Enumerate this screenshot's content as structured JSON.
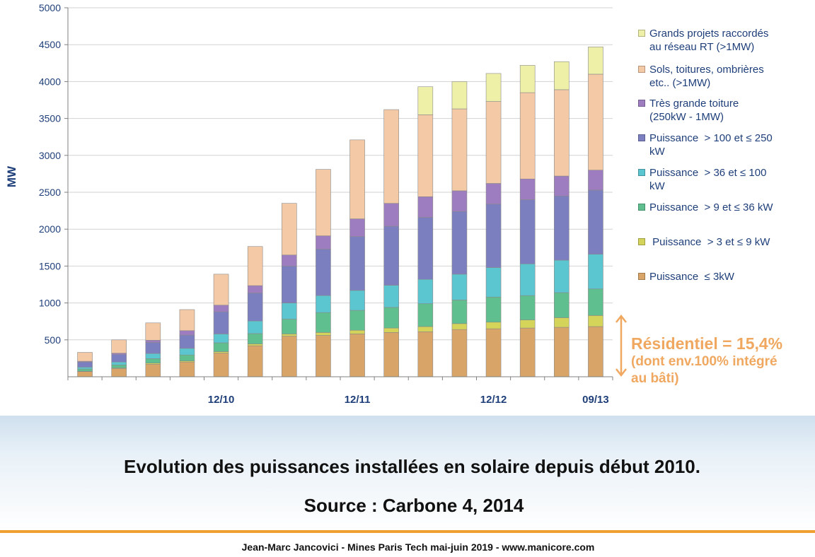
{
  "chart_data": {
    "type": "bar",
    "stacked": true,
    "ylabel": "MW",
    "ylim": [
      0,
      5000
    ],
    "yticks": [
      500,
      1000,
      1500,
      2000,
      2500,
      3000,
      3500,
      4000,
      4500,
      5000
    ],
    "grid": true,
    "legend_position": "right",
    "categories": [
      "",
      "",
      "",
      "",
      "12/10",
      "",
      "",
      "",
      "12/11",
      "",
      "",
      "",
      "12/12",
      "",
      "",
      "09/13"
    ],
    "series": [
      {
        "name": "Puissance ≤ 3kW",
        "color": "#d9a467",
        "values": [
          70,
          110,
          170,
          200,
          320,
          420,
          550,
          560,
          580,
          600,
          610,
          640,
          650,
          660,
          670,
          680
        ]
      },
      {
        "name": "Puissance > 3 et ≤ 9 kW",
        "color": "#d4d35a",
        "values": [
          5,
          10,
          15,
          15,
          20,
          25,
          30,
          40,
          50,
          60,
          70,
          80,
          90,
          110,
          130,
          150
        ]
      },
      {
        "name": "Puissance > 9 et ≤ 36 kW",
        "color": "#5fbf8e",
        "values": [
          30,
          40,
          60,
          80,
          120,
          140,
          200,
          270,
          270,
          280,
          310,
          320,
          340,
          330,
          340,
          360
        ]
      },
      {
        "name": "Puissance > 36 et ≤ 100 kW",
        "color": "#5bc5d0",
        "values": [
          25,
          40,
          70,
          90,
          120,
          170,
          220,
          230,
          270,
          300,
          330,
          350,
          400,
          430,
          440,
          470
        ]
      },
      {
        "name": "Puissance > 100 et ≤ 250 kW",
        "color": "#7c7fbf",
        "values": [
          70,
          100,
          150,
          180,
          300,
          380,
          500,
          630,
          730,
          800,
          840,
          850,
          860,
          870,
          870,
          870
        ]
      },
      {
        "name": "Très grande toiture (250kW - 1MW)",
        "color": "#9d7dbf",
        "values": [
          10,
          20,
          30,
          60,
          90,
          100,
          150,
          180,
          240,
          310,
          280,
          280,
          280,
          280,
          270,
          270
        ]
      },
      {
        "name": "Sols, toitures, ombrières etc.. (>1MW)",
        "color": "#f4c9a6",
        "values": [
          120,
          180,
          235,
          285,
          420,
          530,
          700,
          900,
          1070,
          1270,
          1110,
          1110,
          1110,
          1170,
          1170,
          1300
        ]
      },
      {
        "name": "Grands projets raccordés au réseau RT (>1MW)",
        "color": "#eef0a8",
        "values": [
          0,
          0,
          0,
          0,
          0,
          0,
          0,
          0,
          0,
          0,
          380,
          370,
          380,
          370,
          380,
          370
        ]
      }
    ]
  },
  "legend": [
    {
      "line1": "Grands projets raccordés",
      "line2": "au réseau RT (>1MW)",
      "color": "#eef0a8"
    },
    {
      "line1": "Sols, toitures, ombrières",
      "line2": "etc.. (>1MW)",
      "color": "#f4c9a6"
    },
    {
      "line1": "Très grande toiture",
      "line2": "(250kW - 1MW)",
      "color": "#9d7dbf"
    },
    {
      "line1": "Puissance  > 100 et ≤ 250",
      "line2": "kW",
      "color": "#7c7fbf"
    },
    {
      "line1": "Puissance  > 36 et ≤ 100",
      "line2": "kW",
      "color": "#5bc5d0"
    },
    {
      "line1": "Puissance  > 9 et ≤ 36 kW",
      "line2": "",
      "color": "#5fbf8e"
    },
    {
      "line1": " Puissance  > 3 et ≤ 9 kW",
      "line2": "",
      "color": "#d4d35a"
    },
    {
      "line1": "Puissance  ≤ 3kW",
      "line2": "",
      "color": "#d9a467"
    }
  ],
  "annotation": {
    "line1": "Résidentiel = 15,4%",
    "line2": "(dont env.100% intégré",
    "line3": "au bâti)",
    "color": "#f0a860"
  },
  "caption": {
    "title": "Evolution des puissances installées en solaire depuis début 2010.",
    "source": "Source : Carbone 4, 2014"
  },
  "footer": {
    "text": "Jean-Marc Jancovici - Mines Paris Tech mai-juin 2019 - www.manicore.com",
    "accent_color": "#f0a030"
  }
}
